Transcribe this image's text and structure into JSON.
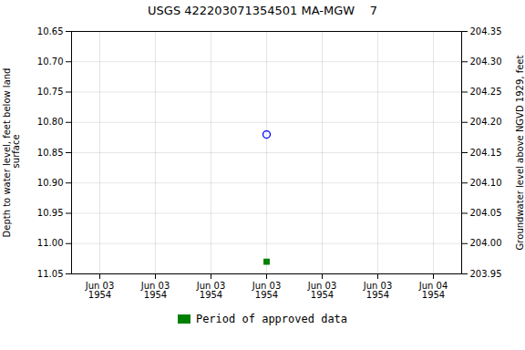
{
  "chart_data": {
    "type": "scatter",
    "title": "USGS 422203071354501 MA-MGW    7",
    "ylabel": "Depth to water level, feet below land\n surface",
    "y2label": "Groundwater level above NGVD 1929, feet",
    "categories": [
      "Jun 03\n1954",
      "Jun 03\n1954",
      "Jun 03\n1954",
      "Jun 03\n1954",
      "Jun 03\n1954",
      "Jun 03\n1954",
      "Jun 04\n1954"
    ],
    "series": [
      {
        "color": "#0000ff",
        "marker": "open_circle",
        "values": [
          null,
          null,
          null,
          10.82,
          null,
          null,
          null
        ]
      },
      {
        "name": "Period of approved data",
        "color": "#008000",
        "marker": "square",
        "values": [
          null,
          null,
          null,
          11.03,
          null,
          null,
          null
        ]
      }
    ],
    "ylim": [
      11.05,
      10.65
    ],
    "yticks": [
      10.65,
      {
        "value": 10.7,
        "label": "10.70"
      },
      10.75,
      {
        "value": 10.8,
        "label": "10.80"
      },
      10.85,
      {
        "value": 10.9,
        "label": "10.90"
      },
      10.95,
      {
        "value": 11,
        "label": "11.00"
      },
      11.05
    ],
    "y2lim": [
      203.95,
      204.35
    ],
    "y2ticks": [
      204.35,
      {
        "value": 204.3,
        "label": "204.30"
      },
      204.25,
      {
        "value": 204.2,
        "label": "204.20"
      },
      204.15,
      {
        "value": 204.1,
        "label": "204.10"
      },
      204.05,
      {
        "value": 204,
        "label": "204.00"
      },
      203.95
    ],
    "grid": true,
    "legend": "bottom"
  }
}
